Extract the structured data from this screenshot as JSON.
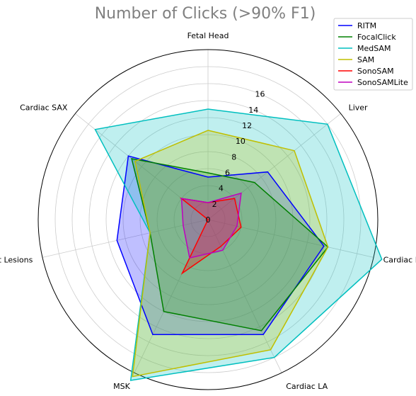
{
  "chart_data": {
    "type": "radar",
    "title": "Number of Clicks (>90% F1)",
    "categories": [
      "Fetal Head",
      "Liver",
      "Cardiac LV",
      "Cardiac LA",
      "MSK",
      "Breast Lesions",
      "Cardiac SAX"
    ],
    "rticks": [
      "0",
      "2",
      "4",
      "6",
      "8",
      "10",
      "12",
      "14",
      "16"
    ],
    "rlim": [
      0,
      20
    ],
    "grid": true,
    "legend_position": "top-right",
    "series": [
      {
        "name": "RITM",
        "color": "#0000ff",
        "fill": true,
        "values": [
          5,
          9,
          14,
          15,
          15,
          11,
          12
        ]
      },
      {
        "name": "FocalClick",
        "color": "#008000",
        "fill": true,
        "values": [
          5.5,
          7,
          14.5,
          14.5,
          12,
          7,
          11.5
        ]
      },
      {
        "name": "MedSAM",
        "color": "#00bfbf",
        "fill": true,
        "values": [
          13,
          18,
          21,
          18,
          21,
          7,
          17
        ]
      },
      {
        "name": "SAM",
        "color": "#bfbf00",
        "fill": true,
        "values": [
          10.5,
          13,
          14.5,
          17,
          20.5,
          7,
          11
        ]
      },
      {
        "name": "SonoSAM",
        "color": "#ff0000",
        "fill": true,
        "values": [
          2,
          4,
          4,
          3.5,
          7,
          0,
          4
        ]
      },
      {
        "name": "SonoSAMLite",
        "color": "#bf00bf",
        "fill": true,
        "values": [
          2,
          5,
          3.5,
          4,
          5,
          3,
          4
        ]
      }
    ]
  }
}
